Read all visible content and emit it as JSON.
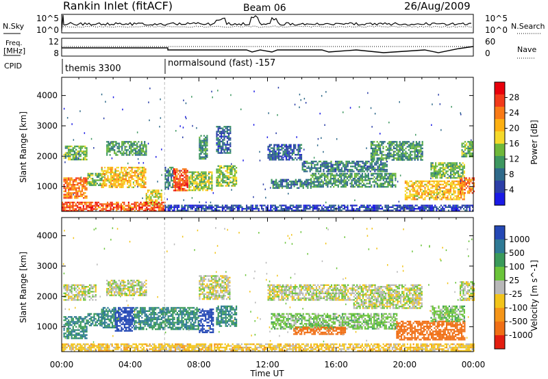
{
  "header": {
    "title": "Rankin Inlet (fitACF)",
    "beam": "Beam 06",
    "date": "26/Aug/2009"
  },
  "top_panels": {
    "noise": {
      "left_label": "N.Sky",
      "right_label": "N.Search",
      "left_ticks": [
        "10^5",
        "10^0"
      ],
      "right_ticks": [
        "10^5",
        "10^0"
      ]
    },
    "freq": {
      "left_label_line1": "Freq.",
      "left_label_line2": "[MHz]",
      "right_label": "Nave",
      "left_ticks": [
        "12",
        "8"
      ],
      "right_ticks": [
        "60",
        "0"
      ]
    },
    "cpid": {
      "label": "CPID",
      "programs": [
        "themis 3300",
        "normalsound (fast) -157"
      ]
    }
  },
  "colorbars": {
    "power": {
      "label": "Power [dB]",
      "ticks": [
        "28",
        "24",
        "20",
        "16",
        "12",
        "8",
        "4"
      ],
      "colors": [
        "#e8000b",
        "#f23a1a",
        "#f97a16",
        "#fdb012",
        "#f5d92a",
        "#6fb83a",
        "#3e9760",
        "#2f6a8a",
        "#2c3fa8",
        "#1a1ae6"
      ]
    },
    "velocity": {
      "label": "Velocity [m s^-1]",
      "ticks": [
        "1000",
        "500",
        "100",
        "25",
        "-25",
        "-100",
        "-500",
        "-1000"
      ],
      "colors": [
        "#2448b5",
        "#2f7a95",
        "#3a9a5a",
        "#6bc43a",
        "#b8b8b8",
        "#f2c41a",
        "#f59518",
        "#f06f15",
        "#e31e10"
      ]
    }
  },
  "axes": {
    "xlabel": "Time UT",
    "ylabel": "Slant Range [km]",
    "x_ticks": [
      "00:00",
      "04:00",
      "08:00",
      "12:00",
      "16:00",
      "20:00",
      "00:00"
    ],
    "y_ticks": [
      "4000",
      "3000",
      "2000",
      "1000"
    ]
  },
  "chart_data": [
    {
      "type": "heatmap",
      "name": "power",
      "x_range_hours": [
        0,
        24
      ],
      "y_range_km": [
        180,
        4600
      ],
      "xlabel": "Time UT",
      "ylabel": "Slant Range [km]",
      "colorbar_label": "Power [dB]",
      "colorbar_range": [
        0,
        30
      ],
      "bands": [
        {
          "t0": 0.1,
          "t1": 1.5,
          "r0": 600,
          "r1": 1300,
          "level": 24
        },
        {
          "t0": 0.1,
          "t1": 1.5,
          "r0": 1900,
          "r1": 2350,
          "level": 14
        },
        {
          "t0": 1.5,
          "t1": 2.5,
          "r0": 1050,
          "r1": 1450,
          "level": 14
        },
        {
          "t0": 2.3,
          "t1": 4.9,
          "r0": 1000,
          "r1": 1650,
          "level": 20
        },
        {
          "t0": 2.6,
          "t1": 4.9,
          "r0": 2050,
          "r1": 2500,
          "level": 12
        },
        {
          "t0": 4.9,
          "t1": 5.8,
          "r0": 400,
          "r1": 900,
          "level": 18
        },
        {
          "t0": 6.0,
          "t1": 6.5,
          "r0": 900,
          "r1": 1650,
          "level": 10
        },
        {
          "t0": 6.5,
          "t1": 7.3,
          "r0": 850,
          "r1": 1600,
          "level": 26
        },
        {
          "t0": 7.4,
          "t1": 8.8,
          "r0": 900,
          "r1": 1500,
          "level": 16
        },
        {
          "t0": 8.0,
          "t1": 8.5,
          "r0": 1900,
          "r1": 2700,
          "level": 12
        },
        {
          "t0": 9.0,
          "t1": 10.2,
          "r0": 1000,
          "r1": 1700,
          "level": 16
        },
        {
          "t0": 9.0,
          "t1": 9.8,
          "r0": 2100,
          "r1": 3000,
          "level": 8
        },
        {
          "t0": 12.0,
          "t1": 14.0,
          "r0": 1900,
          "r1": 2400,
          "level": 8
        },
        {
          "t0": 12.2,
          "t1": 14.5,
          "r0": 950,
          "r1": 1250,
          "level": 10
        },
        {
          "t0": 14.0,
          "t1": 19.0,
          "r0": 1500,
          "r1": 1850,
          "level": 10
        },
        {
          "t0": 14.5,
          "t1": 19.5,
          "r0": 1000,
          "r1": 1450,
          "level": 12
        },
        {
          "t0": 18.0,
          "t1": 21.0,
          "r0": 1900,
          "r1": 2500,
          "level": 12
        },
        {
          "t0": 20.0,
          "t1": 23.5,
          "r0": 600,
          "r1": 1200,
          "level": 20
        },
        {
          "t0": 21.5,
          "t1": 23.5,
          "r0": 1300,
          "r1": 1800,
          "level": 14
        },
        {
          "t0": 23.2,
          "t1": 24.0,
          "r0": 800,
          "r1": 1300,
          "level": 24
        },
        {
          "t0": 23.3,
          "t1": 24.0,
          "r0": 2000,
          "r1": 2500,
          "level": 14
        },
        {
          "t0": 0.0,
          "t1": 6.0,
          "r0": 200,
          "r1": 500,
          "level": 26
        },
        {
          "t0": 6.0,
          "t1": 24.0,
          "r0": 200,
          "r1": 400,
          "level": 6
        }
      ]
    },
    {
      "type": "heatmap",
      "name": "velocity",
      "x_range_hours": [
        0,
        24
      ],
      "y_range_km": [
        180,
        4600
      ],
      "xlabel": "Time UT",
      "ylabel": "Slant Range [km]",
      "colorbar_label": "Velocity [m s^-1]",
      "colorbar_range": [
        -1000,
        1000
      ],
      "bands": [
        {
          "t0": 0.1,
          "t1": 1.5,
          "r0": 600,
          "r1": 1350,
          "level": 300
        },
        {
          "t0": 0.1,
          "t1": 2.0,
          "r0": 1900,
          "r1": 2400,
          "level": 0
        },
        {
          "t0": 1.5,
          "t1": 2.5,
          "r0": 1050,
          "r1": 1450,
          "level": 300
        },
        {
          "t0": 2.3,
          "t1": 3.1,
          "r0": 1000,
          "r1": 1650,
          "level": 300
        },
        {
          "t0": 3.1,
          "t1": 4.2,
          "r0": 850,
          "r1": 1650,
          "level": 900
        },
        {
          "t0": 4.2,
          "t1": 6.0,
          "r0": 900,
          "r1": 1650,
          "level": 300
        },
        {
          "t0": 2.6,
          "t1": 4.9,
          "r0": 2050,
          "r1": 2550,
          "level": 0
        },
        {
          "t0": 6.0,
          "t1": 8.0,
          "r0": 900,
          "r1": 1650,
          "level": 300
        },
        {
          "t0": 8.0,
          "t1": 8.8,
          "r0": 800,
          "r1": 1600,
          "level": 900
        },
        {
          "t0": 9.0,
          "t1": 10.2,
          "r0": 1000,
          "r1": 1700,
          "level": 300
        },
        {
          "t0": 8.0,
          "t1": 9.8,
          "r0": 1900,
          "r1": 2700,
          "level": 0
        },
        {
          "t0": 12.0,
          "t1": 17.0,
          "r0": 1900,
          "r1": 2400,
          "level": 0
        },
        {
          "t0": 12.2,
          "t1": 19.5,
          "r0": 950,
          "r1": 1450,
          "level": 60
        },
        {
          "t0": 13.5,
          "t1": 16.5,
          "r0": 750,
          "r1": 1000,
          "level": -400
        },
        {
          "t0": 17.0,
          "t1": 21.0,
          "r0": 1600,
          "r1": 2400,
          "level": 0
        },
        {
          "t0": 19.5,
          "t1": 23.5,
          "r0": 600,
          "r1": 1200,
          "level": -400
        },
        {
          "t0": 21.5,
          "t1": 23.5,
          "r0": 1200,
          "r1": 1700,
          "level": 60
        },
        {
          "t0": 23.2,
          "t1": 24.0,
          "r0": 1900,
          "r1": 2500,
          "level": 0
        },
        {
          "t0": 0.0,
          "t1": 24.0,
          "r0": 200,
          "r1": 450,
          "level": -60
        }
      ]
    }
  ]
}
